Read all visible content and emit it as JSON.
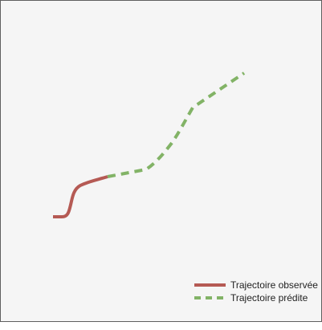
{
  "colors": {
    "observed": "#b55a54",
    "predicted": "#82b366",
    "background": "#f5f5f5"
  },
  "legend": {
    "observed_label": "Trajectoire observée",
    "predicted_label": "Trajectoire prédite"
  }
}
